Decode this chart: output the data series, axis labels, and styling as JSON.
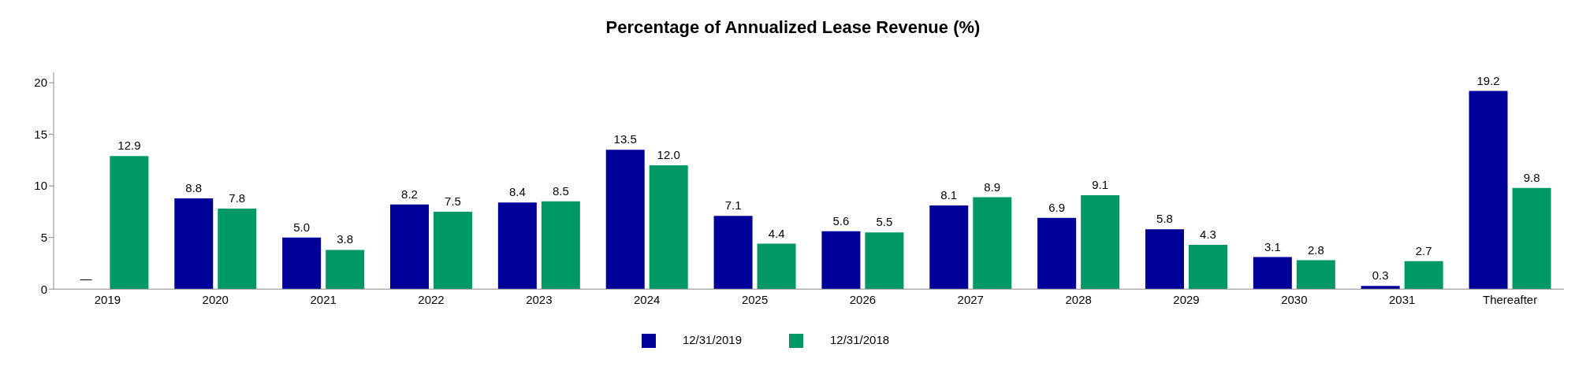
{
  "chart_data": {
    "type": "bar",
    "title": "Percentage of Annualized Lease Revenue (%)",
    "categories": [
      "2019",
      "2020",
      "2021",
      "2022",
      "2023",
      "2024",
      "2025",
      "2026",
      "2027",
      "2028",
      "2029",
      "2030",
      "2031",
      "Thereafter"
    ],
    "series": [
      {
        "name": "12/31/2019",
        "color": "#000099",
        "values": [
          null,
          8.8,
          5.0,
          8.2,
          8.4,
          13.5,
          7.1,
          5.6,
          8.1,
          6.9,
          5.8,
          3.1,
          0.3,
          19.2
        ],
        "value_labels": [
          "—",
          "8.8",
          "5.0",
          "8.2",
          "8.4",
          "13.5",
          "7.1",
          "5.6",
          "8.1",
          "6.9",
          "5.8",
          "3.1",
          "0.3",
          "19.2"
        ]
      },
      {
        "name": "12/31/2018",
        "color": "#009966",
        "values": [
          12.9,
          7.8,
          3.8,
          7.5,
          8.5,
          12.0,
          4.4,
          5.5,
          8.9,
          9.1,
          4.3,
          2.8,
          2.7,
          9.8
        ],
        "value_labels": [
          "12.9",
          "7.8",
          "3.8",
          "7.5",
          "8.5",
          "12.0",
          "4.4",
          "5.5",
          "8.9",
          "9.1",
          "4.3",
          "2.8",
          "2.7",
          "9.8"
        ]
      }
    ],
    "ylim": [
      0,
      21
    ],
    "yticks": [
      0,
      5,
      10,
      15,
      20
    ],
    "grid": false,
    "legend": "bottom"
  }
}
